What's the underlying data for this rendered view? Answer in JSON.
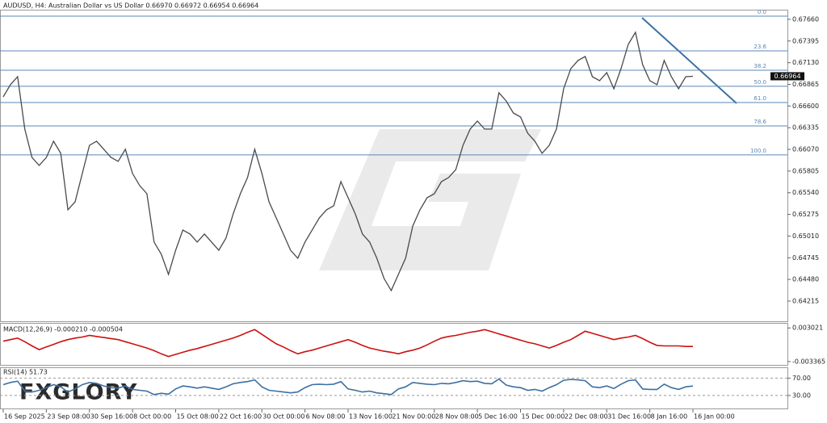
{
  "chart_data": [
    {
      "type": "line",
      "title": "AUDUSD, H4:  Australian Dollar vs US Dollar  0.66970 0.66972 0.66954 0.66964",
      "categories": [
        "16 Sep 2025",
        null,
        null,
        null,
        null,
        null,
        "23 Sep 08:00",
        null,
        null,
        null,
        null,
        null,
        "30 Sep 16:00",
        null,
        null,
        null,
        null,
        null,
        "8 Oct 00:00",
        null,
        null,
        null,
        null,
        null,
        "15 Oct 08:00",
        null,
        null,
        null,
        null,
        null,
        "22 Oct 16:00",
        null,
        null,
        null,
        null,
        null,
        "30 Oct 00:00",
        null,
        null,
        null,
        null,
        null,
        "6 Nov 08:00",
        null,
        null,
        null,
        null,
        null,
        "13 Nov 16:00",
        null,
        null,
        null,
        null,
        null,
        "21 Nov 00:00",
        null,
        null,
        null,
        null,
        null,
        "28 Nov 08:00",
        null,
        null,
        null,
        null,
        null,
        "5 Dec 16:00",
        null,
        null,
        null,
        null,
        null,
        "15 Dec 00:00",
        null,
        null,
        null,
        null,
        null,
        "22 Dec 08:00",
        null,
        null,
        null,
        null,
        null,
        "31 Dec 16:00",
        null,
        null,
        null,
        null,
        null,
        "8 Jan 16:00",
        null,
        null,
        null,
        null,
        null,
        "16 Jan 00:00"
      ],
      "values": [
        0.66712,
        0.66861,
        0.66959,
        0.66318,
        0.65972,
        0.65874,
        0.65972,
        0.6617,
        0.66022,
        0.65331,
        0.65429,
        0.65775,
        0.6612,
        0.6617,
        0.66071,
        0.65972,
        0.65923,
        0.66071,
        0.65775,
        0.65627,
        0.65528,
        0.64936,
        0.64788,
        0.64541,
        0.64837,
        0.65084,
        0.65035,
        0.64936,
        0.65035,
        0.64936,
        0.64837,
        0.64985,
        0.65281,
        0.65528,
        0.65726,
        0.66071,
        0.65775,
        0.65429,
        0.65232,
        0.65035,
        0.64837,
        0.64739,
        0.64936,
        0.65084,
        0.65232,
        0.65331,
        0.6538,
        0.65676,
        0.65479,
        0.65281,
        0.65035,
        0.64936,
        0.64739,
        0.64492,
        0.64344,
        0.64541,
        0.64739,
        0.65133,
        0.65331,
        0.65479,
        0.65528,
        0.65676,
        0.65726,
        0.65824,
        0.6612,
        0.66318,
        0.66416,
        0.66318,
        0.66318,
        0.66762,
        0.66663,
        0.66515,
        0.66466,
        0.66268,
        0.6617,
        0.66022,
        0.6612,
        0.66318,
        0.66811,
        0.67058,
        0.67157,
        0.67206,
        0.66959,
        0.6691,
        0.67009,
        0.66811,
        0.67058,
        0.67354,
        0.67502,
        0.67107,
        0.6691,
        0.66861,
        0.67157,
        0.66959,
        0.66811,
        0.66959,
        0.66964
      ],
      "color": "#4a4a4a",
      "ylim": [
        0.63968,
        0.67778
      ],
      "yticks": [
        {
          "value": 0.6766,
          "label": "0.67660"
        },
        0.67395,
        {
          "value": 0.6713,
          "label": "0.67130"
        },
        0.66865,
        {
          "value": 0.666,
          "label": "0.66600"
        },
        0.66335,
        {
          "value": 0.6607,
          "label": "0.66070"
        },
        0.65805,
        {
          "value": 0.6554,
          "label": "0.65540"
        },
        0.65275,
        {
          "value": 0.6501,
          "label": "0.65010"
        },
        0.64745,
        {
          "value": 0.6448,
          "label": "0.64480"
        },
        0.64215
      ],
      "last_price": 0.66964,
      "fib_levels": [
        {
          "label": "0.0",
          "value": 0.67699
        },
        {
          "label": "23.6",
          "value": 0.67275
        },
        {
          "label": "38.2",
          "value": 0.67038
        },
        {
          "label": "50.0",
          "value": 0.66841
        },
        {
          "label": "61.0",
          "value": 0.66643
        },
        {
          "label": "78.6",
          "value": 0.66357
        },
        {
          "label": "100.0",
          "value": 0.66002
        }
      ],
      "fib_color": "#5b87b5",
      "watermark": "FXGLORY"
    },
    {
      "type": "line",
      "title": "MACD(12,26,9) -0.000210 -0.000504",
      "values": [
        0.0005,
        0.0008,
        0.0011,
        0.0004,
        -0.0004,
        -0.0011,
        -0.0006,
        -0.0001,
        0.0004,
        0.0008,
        0.0011,
        0.0013,
        0.0016,
        0.0014,
        0.0012,
        0.001,
        0.0008,
        0.0004,
        0,
        -0.0004,
        -0.0008,
        -0.0013,
        -0.0019,
        -0.0024,
        -0.002,
        -0.0016,
        -0.0012,
        -0.0009,
        -0.0005,
        -0.0001,
        0.0003,
        0.0007,
        0.0011,
        0.0016,
        0.0022,
        0.0027,
        0.0018,
        0.0009,
        0,
        -0.0006,
        -0.0013,
        -0.0019,
        -0.0015,
        -0.0012,
        -0.0008,
        -0.0004,
        0,
        0.0004,
        0.0008,
        0.0003,
        -0.0003,
        -0.0008,
        -0.0011,
        -0.0014,
        -0.0016,
        -0.0019,
        -0.0015,
        -0.0012,
        -0.0008,
        -0.0002,
        0.0005,
        0.0011,
        0.0014,
        0.0016,
        0.0019,
        0.0022,
        0.0024,
        0.0027,
        0.0023,
        0.0019,
        0.0015,
        0.0011,
        0.0007,
        0.0003,
        0,
        -0.0004,
        -0.0008,
        -0.0003,
        0.0003,
        0.0008,
        0.0016,
        0.0024,
        0.002,
        0.0016,
        0.0012,
        0.0008,
        0.0011,
        0.0013,
        0.0016,
        0.001,
        0.0003,
        -0.0003,
        -0.0004,
        -0.0004,
        -0.0004,
        -0.0005,
        -0.0005
      ],
      "color": "#cc1111",
      "ylim": [
        -0.004,
        0.00398
      ],
      "yticks": [
        0.003021,
        -0.003365
      ]
    },
    {
      "type": "line",
      "title": "RSI(14) 51.73",
      "values": [
        55,
        60,
        63,
        40,
        38,
        42,
        48,
        55,
        50,
        38,
        45,
        55,
        60,
        58,
        52,
        48,
        47,
        52,
        44,
        42,
        40,
        32,
        35,
        33,
        45,
        52,
        50,
        47,
        50,
        47,
        44,
        50,
        57,
        60,
        62,
        66,
        50,
        42,
        40,
        38,
        36,
        38,
        48,
        55,
        56,
        55,
        56,
        62,
        45,
        42,
        38,
        40,
        36,
        34,
        32,
        45,
        50,
        60,
        58,
        56,
        55,
        58,
        57,
        60,
        64,
        62,
        63,
        58,
        57,
        68,
        54,
        50,
        48,
        42,
        44,
        40,
        48,
        55,
        65,
        67,
        66,
        64,
        50,
        48,
        52,
        46,
        56,
        64,
        66,
        45,
        44,
        44,
        56,
        48,
        44,
        50,
        51.73
      ],
      "color": "#3d6fa3",
      "ylim": [
        0,
        95
      ],
      "yticks": [
        {
          "value": 70,
          "label": "70.00"
        },
        {
          "value": 30,
          "label": "30.00"
        }
      ],
      "grid": true
    }
  ]
}
